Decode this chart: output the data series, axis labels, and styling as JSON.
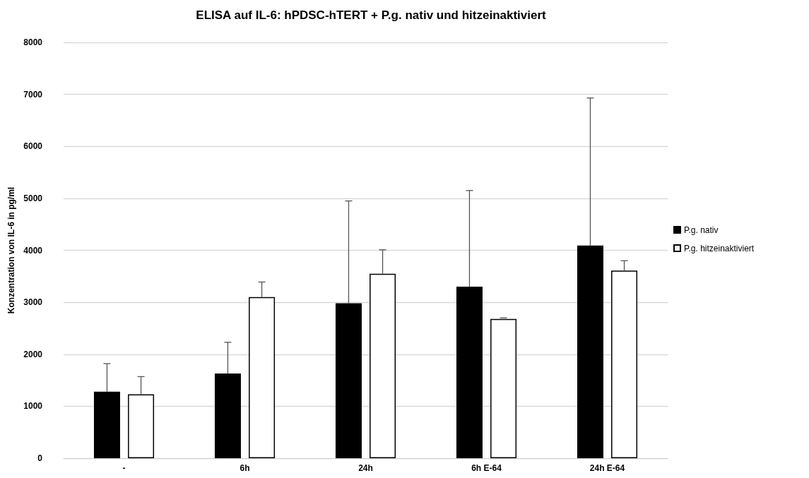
{
  "chart_data": {
    "type": "bar",
    "title": "ELISA auf IL-6: hPDSC-hTERT + P.g. nativ und hitzeinaktiviert",
    "ylabel": "Konzentration von IL-6 in pg/ml",
    "categories": [
      "-",
      "6h",
      "24h",
      "6h E-64",
      "24h E-64"
    ],
    "series": [
      {
        "name": "P.g. nativ",
        "color": "#000000",
        "values": [
          1280,
          1630,
          2980,
          3300,
          4090
        ],
        "errors": [
          [
            1280,
            1820
          ],
          [
            1630,
            2230
          ],
          [
            2980,
            4950
          ],
          [
            3300,
            5150
          ],
          [
            4090,
            6930
          ]
        ]
      },
      {
        "name": "P.g. hitzeinaktiviert",
        "color": "#ffffff",
        "values": [
          1230,
          3100,
          3550,
          2680,
          3610
        ],
        "errors": [
          [
            1230,
            1570
          ],
          [
            3100,
            3390
          ],
          [
            3550,
            4010
          ],
          [
            2680,
            2700
          ],
          [
            3610,
            3800
          ]
        ]
      }
    ],
    "ylim": [
      0,
      8000
    ],
    "yticks": [
      0,
      1000,
      2000,
      3000,
      4000,
      5000,
      6000,
      7000,
      8000
    ],
    "grid": "y",
    "legend": "right"
  }
}
